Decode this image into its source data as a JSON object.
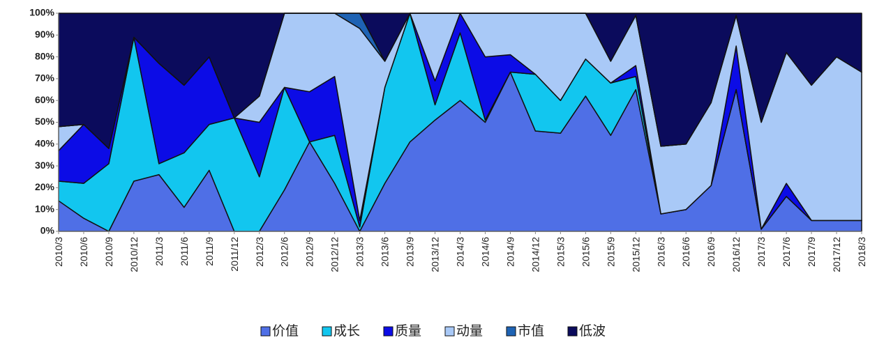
{
  "chart_data": {
    "type": "stacked-area",
    "categories": [
      "2010/3",
      "2010/6",
      "2010/9",
      "2010/12",
      "2011/3",
      "2011/6",
      "2011/9",
      "2011/12",
      "2012/3",
      "2012/6",
      "2012/9",
      "2012/12",
      "2013/3",
      "2013/6",
      "2013/9",
      "2013/12",
      "2014/3",
      "2014/6",
      "2014/9",
      "2014/12",
      "2015/3",
      "2015/6",
      "2015/9",
      "2015/12",
      "2016/3",
      "2016/6",
      "2016/9",
      "2016/12",
      "2017/3",
      "2017/6",
      "2017/9",
      "2017/12",
      "2018/3"
    ],
    "series": [
      {
        "name": "价值",
        "color": "#4f6fe6",
        "values": [
          14,
          6,
          0,
          23,
          26,
          11,
          28,
          0,
          0,
          19,
          41,
          22,
          0,
          22,
          41,
          51,
          60,
          50,
          73,
          46,
          45,
          62,
          44,
          65,
          8,
          10,
          21,
          65,
          1,
          16,
          5,
          5,
          5
        ]
      },
      {
        "name": "成长",
        "color": "#12c6ef",
        "values": [
          9,
          16,
          31,
          66,
          5,
          25,
          21,
          52,
          25,
          47,
          0,
          22,
          2,
          44,
          59,
          7,
          31,
          1,
          0,
          26,
          15,
          17,
          24,
          6,
          0,
          0,
          0,
          0,
          0,
          0,
          0,
          0,
          0
        ]
      },
      {
        "name": "质量",
        "color": "#0c0ce6",
        "values": [
          14,
          27,
          7,
          0,
          46,
          31,
          31,
          0,
          25,
          0,
          23,
          27,
          3,
          0,
          0,
          11,
          9,
          29,
          8,
          0,
          0,
          0,
          0,
          5,
          0,
          0,
          0,
          20,
          0,
          6,
          0,
          0,
          0
        ]
      },
      {
        "name": "动量",
        "color": "#a9c9f7",
        "values": [
          11,
          0,
          0,
          0,
          0,
          0,
          0,
          0,
          12,
          34,
          36,
          29,
          88,
          12,
          0,
          31,
          0,
          20,
          19,
          28,
          40,
          21,
          10,
          23,
          31,
          30,
          38,
          14,
          49,
          60,
          62,
          75,
          68
        ]
      },
      {
        "name": "市值",
        "color": "#1e63b4",
        "values": [
          0,
          0,
          0,
          0,
          0,
          0,
          0,
          0,
          0,
          0,
          0,
          0,
          7,
          0,
          0,
          0,
          0,
          0,
          0,
          0,
          0,
          0,
          0,
          0,
          0,
          0,
          0,
          0,
          0,
          0,
          0,
          0,
          0
        ]
      },
      {
        "name": "低波",
        "color": "#0b0b5c",
        "values": [
          52,
          51,
          62,
          11,
          23,
          33,
          20,
          48,
          38,
          0,
          0,
          0,
          0,
          22,
          0,
          0,
          0,
          0,
          0,
          0,
          0,
          0,
          22,
          1,
          61,
          60,
          41,
          1,
          50,
          18,
          33,
          20,
          27
        ]
      }
    ],
    "ylim": [
      0,
      100
    ],
    "yticks": [
      {
        "value": 0,
        "label": "0%"
      },
      {
        "value": 10,
        "label": "10%"
      },
      {
        "value": 20,
        "label": "20%"
      },
      {
        "value": 30,
        "label": "30%"
      },
      {
        "value": 40,
        "label": "40%"
      },
      {
        "value": 50,
        "label": "50%"
      },
      {
        "value": 60,
        "label": "60%"
      },
      {
        "value": 70,
        "label": "70%"
      },
      {
        "value": 80,
        "label": "80%"
      },
      {
        "value": 90,
        "label": "90%"
      },
      {
        "value": 100,
        "label": "100%"
      }
    ],
    "legend": "bottom"
  }
}
